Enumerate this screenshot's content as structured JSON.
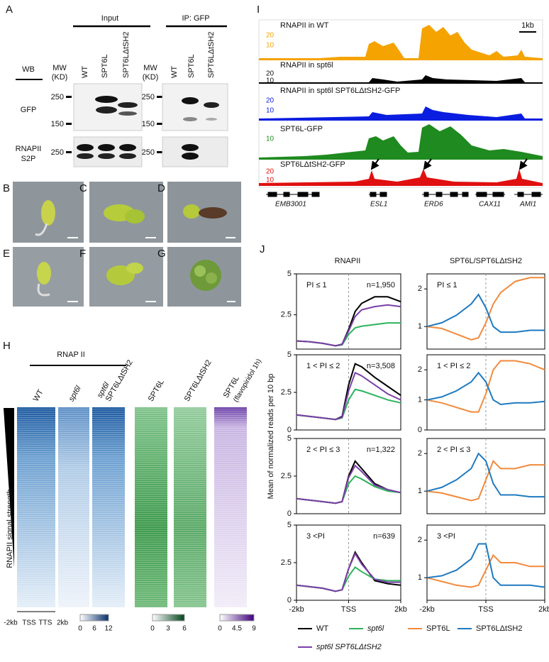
{
  "panel_a": {
    "label": "A",
    "input": "Input",
    "ip": "IP: GFP",
    "wb": "WB",
    "mw_headers": [
      {
        "top": "MW",
        "bottom": "(KD)"
      },
      {
        "top": "MW",
        "bottom": "(KD)"
      }
    ],
    "input_lanes": [
      "WT",
      "SPT6L",
      "SPT6LΔtSH2"
    ],
    "ip_lanes": [
      "WT",
      "SPT6L",
      "SPT6LΔtSH2"
    ],
    "row_labels": {
      "gfp": "GFP",
      "s2p_1": "RNAPII",
      "s2p_2": "S2P"
    },
    "input_markers": [
      250,
      150,
      250
    ],
    "ip_markers": [
      250,
      150,
      250
    ]
  },
  "seedlings": {
    "labels": [
      "B",
      "C",
      "D",
      "E",
      "F",
      "G"
    ]
  },
  "panel_h": {
    "label": "H",
    "group": "RNAP II",
    "columns": [
      [
        "WT"
      ],
      [
        "spt6l"
      ],
      [
        "spt6l",
        "SPT6LΔtSH2"
      ],
      [
        "SPT6L"
      ],
      [
        "SPT6LΔtSH2"
      ],
      [
        "SPT6L",
        "(flavopiridol 1h)"
      ]
    ],
    "ylabel": "RNAPII signal strength",
    "xticks": [
      "-2kb",
      "TSS",
      "TTS",
      "2kb"
    ],
    "colorbars": [
      [
        0,
        6,
        12
      ],
      [
        0,
        3,
        6
      ],
      [
        0,
        4.5,
        9
      ]
    ]
  },
  "panel_i": {
    "label": "I",
    "scale": "1kb",
    "tracks": [
      {
        "label": "RNAPII in WT",
        "scale": [
          20,
          10
        ]
      },
      {
        "label": "RNAPII in spt6l",
        "scale": [
          20,
          10
        ]
      },
      {
        "label": "RNAPII in spt6l SPT6LΔtSH2-GFP",
        "scale": [
          20,
          10
        ]
      },
      {
        "label": "SPT6L-GFP",
        "scale": [
          10
        ]
      },
      {
        "label": "SPT6LΔtSH2-GFP",
        "scale": [
          20,
          10
        ]
      }
    ],
    "genes": [
      "EMB3001",
      "ESL1",
      "ERD6",
      "CAX11",
      "AMI1"
    ]
  },
  "panel_j": {
    "label": "J",
    "ylabel": "Mean of normalized reads per 10 bp",
    "col_titles": [
      "RNAPII",
      "SPT6L/SPT6LΔtSH2"
    ],
    "x": [
      -2,
      -1.5,
      -1,
      -0.5,
      -0.25,
      0,
      0.25,
      0.5,
      1,
      1.5,
      2
    ],
    "xlim": [
      -2,
      2
    ],
    "xticks_left": [
      {
        "value": -2,
        "label": "-2kb"
      },
      {
        "value": 0,
        "label": "TSS"
      },
      {
        "value": 2,
        "label": "2kb"
      }
    ],
    "xticks_right": [
      {
        "value": -2,
        "label": "-2kb"
      },
      {
        "value": 0,
        "label": "TSS"
      },
      {
        "value": 2,
        "label": "2kb"
      }
    ],
    "rows": [
      {
        "left": {
          "note": "PI ≤ 1",
          "n": "n=1,950",
          "ylim": [
            0.4,
            5
          ],
          "yticks": [
            2.5,
            5
          ],
          "series": [
            {
              "color": "#000000",
              "values": [
                0.9,
                0.85,
                0.75,
                0.6,
                0.7,
                1.6,
                2.7,
                3.2,
                3.6,
                3.6,
                3.3
              ]
            },
            {
              "color": "#2db35d",
              "values": [
                0.9,
                0.85,
                0.75,
                0.6,
                0.65,
                1.3,
                1.7,
                1.8,
                1.9,
                2.0,
                2.0
              ]
            },
            {
              "color": "#7b3fa8",
              "values": [
                0.9,
                0.85,
                0.75,
                0.6,
                0.7,
                1.5,
                2.4,
                2.8,
                3.0,
                3.1,
                3.0
              ]
            }
          ]
        },
        "right": {
          "note": "PI ≤ 1",
          "ylim": [
            0.4,
            2.4
          ],
          "yticks": [
            1,
            2
          ],
          "series": [
            {
              "color": "#f28a3c",
              "values": [
                1,
                0.95,
                0.8,
                0.65,
                0.7,
                1.1,
                1.6,
                1.9,
                2.2,
                2.3,
                2.3
              ]
            },
            {
              "color": "#1f7ac0",
              "values": [
                1,
                1.1,
                1.3,
                1.6,
                1.85,
                1.5,
                1.0,
                0.85,
                0.85,
                0.9,
                0.9
              ]
            }
          ]
        }
      },
      {
        "left": {
          "note": "1 < PI ≤ 2",
          "n": "n=3,508",
          "ylim": [
            0,
            5
          ],
          "yticks": [
            0,
            2.5,
            5
          ],
          "series": [
            {
              "color": "#000000",
              "values": [
                1.0,
                0.9,
                0.8,
                0.7,
                0.9,
                3.0,
                4.4,
                4.2,
                3.5,
                2.9,
                2.3
              ]
            },
            {
              "color": "#2db35d",
              "values": [
                1.0,
                0.9,
                0.8,
                0.7,
                0.8,
                2.0,
                2.7,
                2.6,
                2.3,
                2.0,
                1.8
              ]
            },
            {
              "color": "#7b3fa8",
              "values": [
                1.0,
                0.9,
                0.8,
                0.7,
                0.85,
                2.6,
                3.8,
                3.6,
                3.0,
                2.4,
                2.0
              ]
            }
          ]
        },
        "right": {
          "note": "1 < PI ≤ 2",
          "ylim": [
            0,
            2.5
          ],
          "yticks": [
            0,
            1,
            2
          ],
          "series": [
            {
              "color": "#f28a3c",
              "values": [
                1,
                0.9,
                0.75,
                0.6,
                0.6,
                1.2,
                2.0,
                2.3,
                2.3,
                2.2,
                2.0
              ]
            },
            {
              "color": "#1f7ac0",
              "values": [
                1,
                1.1,
                1.3,
                1.6,
                1.9,
                1.6,
                1.0,
                0.85,
                0.9,
                0.9,
                0.95
              ]
            }
          ]
        }
      },
      {
        "left": {
          "note": "2 < PI ≤ 3",
          "n": "n=1,322",
          "ylim": [
            0,
            5
          ],
          "yticks": [
            0,
            2.5,
            5
          ],
          "series": [
            {
              "color": "#000000",
              "values": [
                1.0,
                0.9,
                0.8,
                0.7,
                0.8,
                2.5,
                3.5,
                3.0,
                2.0,
                1.6,
                1.4
              ]
            },
            {
              "color": "#2db35d",
              "values": [
                1.0,
                0.9,
                0.8,
                0.7,
                0.8,
                2.0,
                2.5,
                2.3,
                1.8,
                1.5,
                1.4
              ]
            },
            {
              "color": "#7b3fa8",
              "values": [
                1.0,
                0.9,
                0.8,
                0.7,
                0.8,
                2.4,
                3.2,
                2.8,
                1.9,
                1.6,
                1.4
              ]
            }
          ]
        },
        "right": {
          "note": "2 < PI ≤ 3",
          "ylim": [
            0.4,
            2.4
          ],
          "yticks": [
            1,
            2
          ],
          "series": [
            {
              "color": "#f28a3c",
              "values": [
                1,
                0.95,
                0.85,
                0.75,
                0.8,
                1.3,
                1.8,
                1.6,
                1.6,
                1.7,
                1.7
              ]
            },
            {
              "color": "#1f7ac0",
              "values": [
                1,
                1.1,
                1.3,
                1.6,
                2.0,
                1.8,
                1.2,
                0.9,
                0.9,
                0.85,
                0.85
              ]
            }
          ]
        }
      },
      {
        "left": {
          "note": "3 <PI",
          "n": "n=639",
          "ylim": [
            0,
            5
          ],
          "yticks": [
            0,
            2.5,
            5
          ],
          "series": [
            {
              "color": "#000000",
              "values": [
                1,
                0.9,
                0.8,
                0.6,
                0.7,
                2.1,
                3.2,
                2.5,
                1.3,
                1.1,
                1.0
              ]
            },
            {
              "color": "#2db35d",
              "values": [
                1,
                0.9,
                0.8,
                0.6,
                0.7,
                1.6,
                2.2,
                1.9,
                1.4,
                1.3,
                1.3
              ]
            },
            {
              "color": "#7b3fa8",
              "values": [
                1,
                0.9,
                0.8,
                0.6,
                0.7,
                2.1,
                3.1,
                2.4,
                1.4,
                1.2,
                1.2
              ]
            }
          ]
        },
        "right": {
          "note": "3 <PI",
          "ylim": [
            0.4,
            2.4
          ],
          "yticks": [
            1,
            2
          ],
          "series": [
            {
              "color": "#f28a3c",
              "values": [
                1,
                0.9,
                0.8,
                0.75,
                0.8,
                1.2,
                1.6,
                1.4,
                1.4,
                1.3,
                1.3
              ]
            },
            {
              "color": "#1f7ac0",
              "values": [
                1,
                1.05,
                1.2,
                1.5,
                1.9,
                1.9,
                1.0,
                0.8,
                0.8,
                0.8,
                0.75
              ]
            }
          ]
        }
      }
    ],
    "legend": [
      {
        "name": "WT",
        "color": "#000000"
      },
      {
        "name": "spt6l",
        "color": "#2db35d"
      },
      {
        "name": "SPT6L",
        "color": "#f28a3c"
      },
      {
        "name": "SPT6LΔtSH2",
        "color": "#1f7ac0"
      },
      {
        "name": "spt6l SPT6LΔtSH2",
        "color": "#7b3fa8"
      }
    ]
  }
}
